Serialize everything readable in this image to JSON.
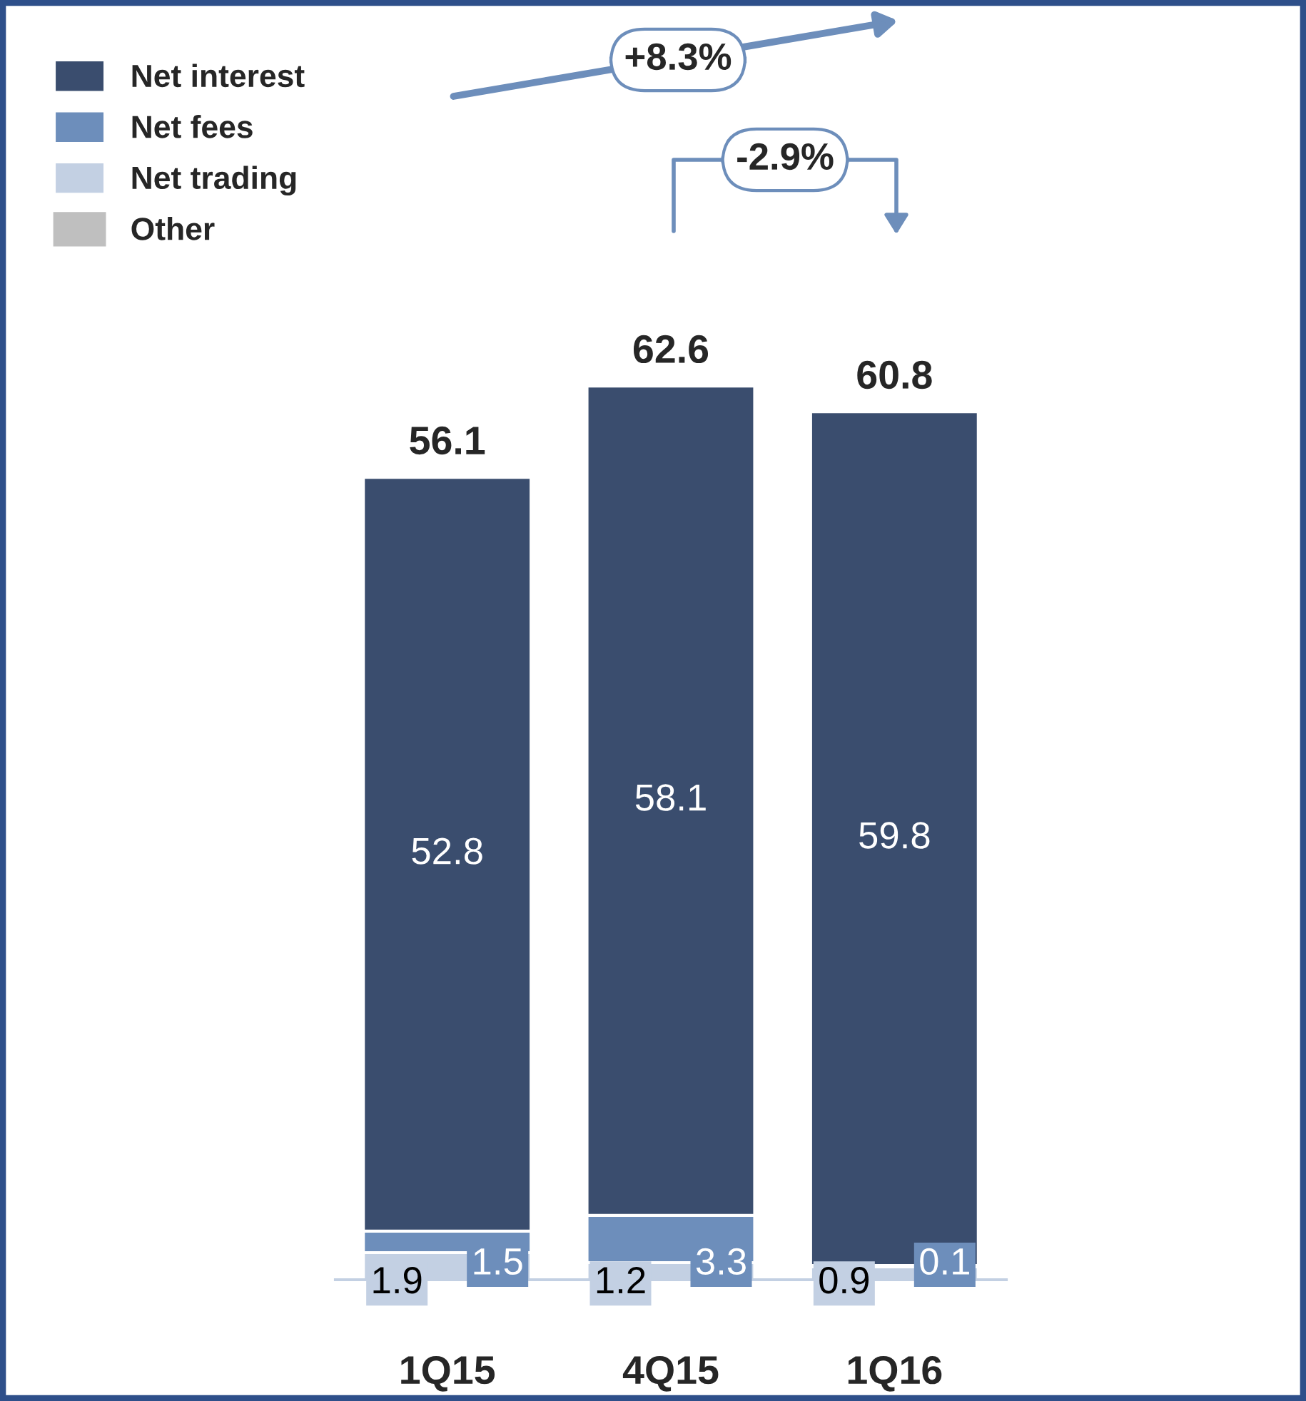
{
  "chart_data": {
    "type": "bar",
    "stacked": true,
    "categories": [
      "1Q15",
      "4Q15",
      "1Q16"
    ],
    "series": [
      {
        "name": "Other",
        "color": "#bfbfbf",
        "values": [
          null,
          null,
          null
        ]
      },
      {
        "name": "Net trading",
        "color": "#c3d0e3",
        "values": [
          1.9,
          1.2,
          0.9
        ]
      },
      {
        "name": "Net fees",
        "color": "#6d8ebb",
        "values": [
          1.5,
          3.3,
          0.1
        ]
      },
      {
        "name": "Net interest",
        "color": "#3a4d6e",
        "values": [
          52.8,
          58.1,
          59.8
        ]
      }
    ],
    "data_labels": true,
    "totals": [
      "56.1",
      "62.6",
      "60.8"
    ],
    "annotations": [
      "+8.3%",
      "-2.9%"
    ],
    "legend": "top left"
  }
}
